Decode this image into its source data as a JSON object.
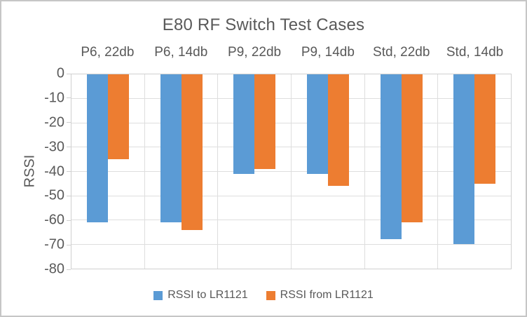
{
  "window": {
    "background": "#FFFFFF",
    "frame_border_color": "#C6C6C6"
  },
  "chart_data": {
    "type": "bar",
    "title": "E80 RF Switch Test Cases",
    "categories": [
      "P6, 22db",
      "P6, 14db",
      "P9, 22db",
      "P9, 14db",
      "Std, 22db",
      "Std, 14db"
    ],
    "series": [
      {
        "name": "RSSI to LR1121",
        "color": "#5B9BD5",
        "values": [
          -61,
          -61,
          -41,
          -41,
          -68,
          -70
        ]
      },
      {
        "name": "RSSI from LR1121",
        "color": "#ED7D31",
        "values": [
          -35,
          -64,
          -39,
          -46,
          -61,
          -45
        ]
      }
    ],
    "xlabel": "",
    "ylabel": "RSSI",
    "ylim": [
      0,
      -80
    ],
    "y_ticks": [
      0,
      -10,
      -20,
      -30,
      -40,
      -50,
      -60,
      -70,
      -80
    ],
    "grid": true,
    "bar_direction": "down-from-zero",
    "category_labels_position": "top",
    "legend_position": "bottom",
    "colors": {
      "text": "#595959",
      "gridline": "#DEDEDE",
      "axis_border": "#D0D0D0"
    }
  }
}
